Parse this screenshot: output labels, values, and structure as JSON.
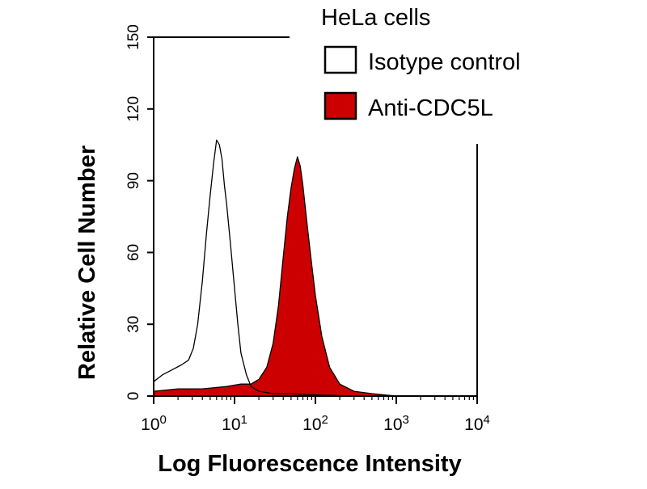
{
  "chart_data": {
    "type": "area",
    "title": "HeLa cells",
    "xlabel": "Log Fluorescence Intensity",
    "ylabel": "Relative Cell Number",
    "x_scale": "log",
    "xlim": [
      1,
      10000
    ],
    "ylim": [
      0,
      150
    ],
    "grid": false,
    "legend_position": "top-right",
    "x_ticks": [
      {
        "base": "10",
        "exp": "0",
        "value": 1
      },
      {
        "base": "10",
        "exp": "1",
        "value": 10
      },
      {
        "base": "10",
        "exp": "2",
        "value": 100
      },
      {
        "base": "10",
        "exp": "3",
        "value": 1000
      },
      {
        "base": "10",
        "exp": "4",
        "value": 10000
      }
    ],
    "y_ticks": [
      "0",
      "30",
      "60",
      "90",
      "120",
      "150"
    ],
    "series": [
      {
        "name": "Isotype control",
        "fill": "none",
        "stroke": "#000000",
        "x": [
          1,
          1.3,
          1.7,
          2.2,
          2.7,
          3.1,
          3.5,
          4.0,
          4.5,
          5.0,
          5.5,
          6.0,
          6.5,
          7.0,
          7.5,
          8.0,
          9.0,
          10,
          11,
          12,
          14,
          16,
          20,
          30,
          50,
          100,
          300,
          1000,
          10000
        ],
        "y": [
          6,
          9,
          11,
          13,
          15,
          20,
          30,
          48,
          68,
          84,
          97,
          107,
          105,
          99,
          88,
          80,
          62,
          45,
          30,
          18,
          9,
          4,
          2,
          1,
          1,
          0.5,
          0,
          0,
          0
        ]
      },
      {
        "name": "Anti-CDC5L",
        "fill": "#cc0000",
        "stroke": "#000000",
        "x": [
          1,
          2,
          4,
          8,
          12,
          16,
          20,
          25,
          30,
          35,
          40,
          45,
          50,
          55,
          60,
          65,
          70,
          80,
          90,
          100,
          120,
          150,
          200,
          300,
          500,
          1000,
          10000
        ],
        "y": [
          2,
          3,
          3,
          4,
          5,
          5,
          7,
          12,
          22,
          38,
          58,
          75,
          87,
          95,
          100,
          96,
          88,
          70,
          55,
          42,
          25,
          12,
          5,
          2,
          1,
          0,
          0
        ]
      }
    ]
  }
}
